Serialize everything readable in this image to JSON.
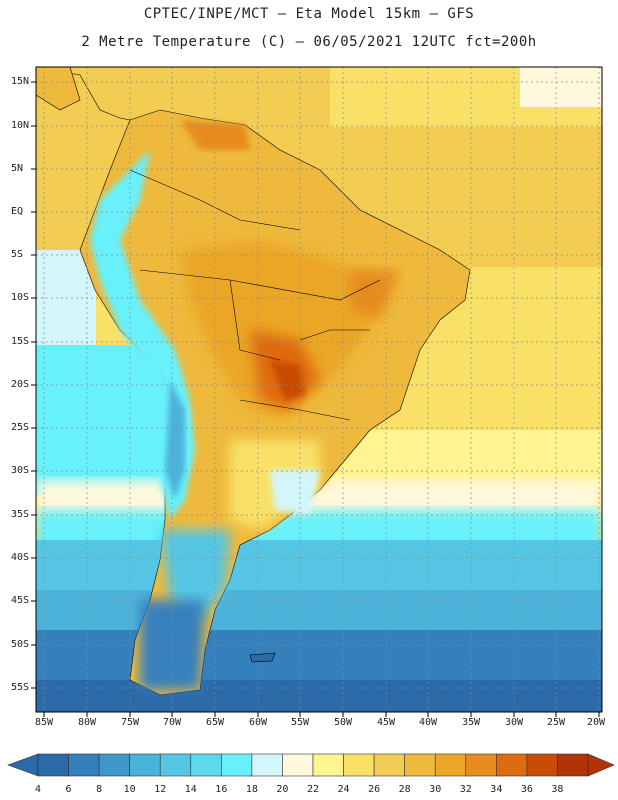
{
  "title": {
    "line1": "CPTEC/INPE/MCT –  Eta Model 15km – GFS",
    "line2": "2 Metre Temperature (C) – 06/05/2021 12UTC fct=200h"
  },
  "map": {
    "lat_labels": [
      "15N",
      "10N",
      "5N",
      "EQ",
      "5S",
      "10S",
      "15S",
      "20S",
      "25S",
      "30S",
      "35S",
      "40S",
      "45S",
      "50S",
      "55S"
    ],
    "lon_labels": [
      "85W",
      "80W",
      "75W",
      "70W",
      "65W",
      "60W",
      "55W",
      "50W",
      "45W",
      "40W",
      "35W",
      "30W",
      "25W",
      "20W"
    ]
  },
  "colorbar": {
    "labels": [
      "4",
      "6",
      "8",
      "10",
      "12",
      "14",
      "16",
      "18",
      "20",
      "22",
      "24",
      "26",
      "28",
      "30",
      "32",
      "34",
      "36",
      "38"
    ],
    "colors": [
      "#2a6aa8",
      "#3480bd",
      "#3f98cc",
      "#4bb2da",
      "#55c6e4",
      "#5ed8ec",
      "#67f1fb",
      "#d3f6fb",
      "#fff8dc",
      "#fef590",
      "#f9e167",
      "#f3cd52",
      "#eeb93c",
      "#eba625",
      "#e78c1e",
      "#df6b10",
      "#c84b06",
      "#b33308"
    ]
  }
}
